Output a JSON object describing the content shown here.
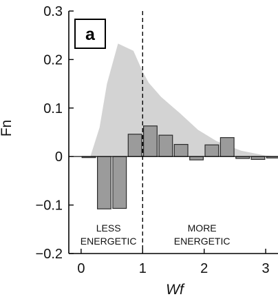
{
  "chart_data": {
    "type": "bar",
    "xlabel": "Wf",
    "ylabel": "Fn",
    "xlim": [
      -0.2,
      3.2
    ],
    "ylim": [
      -0.2,
      0.3
    ],
    "grid": false,
    "panel_label": "a",
    "x_ticks": [
      0,
      1,
      2,
      3
    ],
    "x_tick_labels": [
      "0",
      "1",
      "2",
      "3"
    ],
    "y_ticks": [
      0.3,
      0.2,
      0.1,
      0,
      -0.1,
      -0.2
    ],
    "y_tick_labels": [
      "0.3",
      "0.2",
      "0.1",
      "0",
      "−0.1",
      "−0.2"
    ],
    "divider_x": 1,
    "annotations": {
      "left": [
        "LESS",
        "ENERGETIC"
      ],
      "right": [
        "MORE",
        "ENERGETIC"
      ]
    },
    "bar_width": 0.22,
    "bars": {
      "x": [
        0.125,
        0.375,
        0.625,
        0.875,
        1.125,
        1.375,
        1.625,
        1.875,
        2.125,
        2.375,
        2.625,
        2.875,
        3.125
      ],
      "values": [
        -0.002,
        -0.108,
        -0.107,
        0.046,
        0.063,
        0.044,
        0.025,
        -0.007,
        0.024,
        0.039,
        -0.004,
        -0.006,
        -0.003
      ]
    },
    "shaded_area": {
      "x": [
        0.15,
        0.3,
        0.42,
        0.6,
        0.85,
        1.0,
        1.1,
        1.3,
        1.6,
        1.9,
        2.2,
        2.6,
        3.0,
        3.2
      ],
      "y": [
        0.0,
        0.06,
        0.15,
        0.233,
        0.218,
        0.175,
        0.152,
        0.123,
        0.09,
        0.055,
        0.032,
        0.012,
        0.002,
        0.0
      ]
    },
    "colors": {
      "shaded_area": "#d3d3d3",
      "bar_fill": "#9b9b9b",
      "bar_stroke": "#2b2b2b",
      "axis": "#000000"
    }
  }
}
